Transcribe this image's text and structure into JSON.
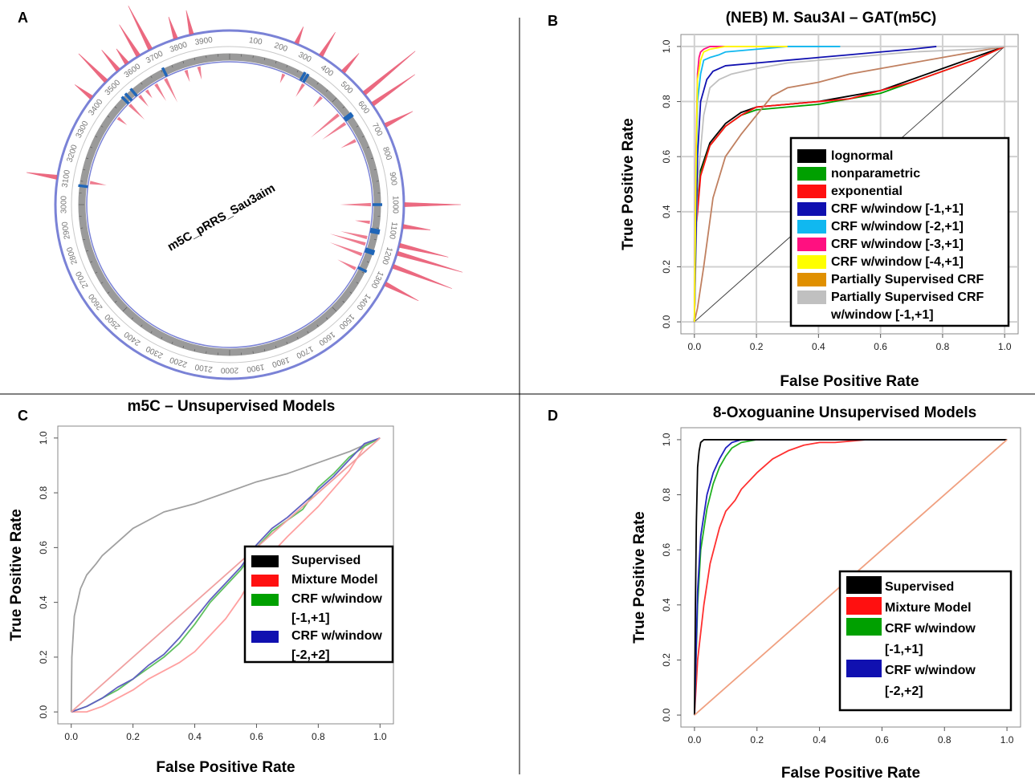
{
  "panel_labels": [
    "A",
    "B",
    "C",
    "D"
  ],
  "panel_a": {
    "plasmid_name": "m5C_pRRS_Sau3aim",
    "ring_labels": [
      "100",
      "200",
      "300",
      "400",
      "500",
      "600",
      "700",
      "800",
      "900",
      "1000",
      "1100",
      "1200",
      "1300",
      "1400",
      "1500",
      "1600",
      "1700",
      "1800",
      "1900",
      "2000",
      "2100",
      "2200",
      "2300",
      "2400",
      "2500",
      "2600",
      "2700",
      "2800",
      "2900",
      "3000",
      "3100",
      "3200",
      "3300",
      "3400",
      "3500",
      "3600",
      "3700",
      "3800",
      "3900"
    ],
    "sequence_length": 4000,
    "marker_positions": [
      330,
      345,
      590,
      600,
      1000,
      1110,
      1120,
      1200,
      1210,
      1290,
      3080,
      3500,
      3520,
      3550,
      3710
    ],
    "peaks": [
      {
        "pos": 3560,
        "h": 32
      },
      {
        "pos": 3600,
        "h": 22
      },
      {
        "pos": 3650,
        "h": 45
      },
      {
        "pos": 3700,
        "h": 60
      },
      {
        "pos": 3800,
        "h": 28
      },
      {
        "pos": 3860,
        "h": 30
      },
      {
        "pos": 250,
        "h": 22
      },
      {
        "pos": 350,
        "h": 34
      },
      {
        "pos": 450,
        "h": 30
      },
      {
        "pos": 560,
        "h": 82
      },
      {
        "pos": 610,
        "h": 64
      },
      {
        "pos": 700,
        "h": 38
      },
      {
        "pos": 1000,
        "h": 70
      },
      {
        "pos": 1080,
        "h": 34
      },
      {
        "pos": 1150,
        "h": 62
      },
      {
        "pos": 1180,
        "h": 84
      },
      {
        "pos": 1230,
        "h": 78
      },
      {
        "pos": 1300,
        "h": 46
      },
      {
        "pos": 3100,
        "h": 38
      },
      {
        "pos": 3500,
        "h": 48
      },
      {
        "pos": 3420,
        "h": 26
      }
    ],
    "colors": {
      "peak": "#e8506a",
      "marker": "#2066b8",
      "outer_ring": "#7a82d6",
      "ring": "#9a9a9a"
    }
  },
  "chart_data": [
    {
      "type": "line",
      "panel": "B",
      "title": "(NEB) M. Sau3AI – GAT(m5C)",
      "xlabel": "False Positive Rate",
      "ylabel": "True Positive Rate",
      "xlim": [
        0,
        1
      ],
      "ylim": [
        0,
        1
      ],
      "x_ticks": [
        "0.0",
        "0.2",
        "0.4",
        "0.6",
        "0.8",
        "1.0"
      ],
      "y_ticks": [
        "0.0",
        "0.2",
        "0.4",
        "0.6",
        "0.8",
        "1.0"
      ],
      "grid": true,
      "legend_position": "bottom-right",
      "legend": [
        {
          "label": "lognormal",
          "color": "#000000"
        },
        {
          "label": "nonparametric",
          "color": "#00a000"
        },
        {
          "label": "exponential",
          "color": "#ff1010"
        },
        {
          "label": "CRF w/window [-1,+1]",
          "color": "#1010b0"
        },
        {
          "label": "CRF w/window [-2,+1]",
          "color": "#10b8f0"
        },
        {
          "label": "CRF w/window [-3,+1]",
          "color": "#ff1080"
        },
        {
          "label": "CRF w/window [-4,+1]",
          "color": "#ffff00"
        },
        {
          "label": "Partially Supervised CRF",
          "color": "#e09000"
        },
        {
          "label": "Partially Supervised CRF",
          "label2": "w/window [-1,+1]",
          "color": "#c0c0c0"
        }
      ],
      "series": [
        {
          "color": "#000000",
          "x": [
            0,
            0.005,
            0.02,
            0.05,
            0.1,
            0.15,
            0.2,
            0.3,
            0.4,
            0.5,
            0.6,
            0.7,
            0.8,
            0.9,
            1.0
          ],
          "y": [
            0,
            0.35,
            0.55,
            0.65,
            0.72,
            0.76,
            0.78,
            0.79,
            0.8,
            0.82,
            0.84,
            0.88,
            0.92,
            0.96,
            1.0
          ]
        },
        {
          "color": "#00a000",
          "x": [
            0,
            0.005,
            0.02,
            0.05,
            0.1,
            0.15,
            0.2,
            0.3,
            0.4,
            0.5,
            0.6,
            0.7,
            0.8,
            0.9,
            1.0
          ],
          "y": [
            0,
            0.34,
            0.54,
            0.64,
            0.71,
            0.75,
            0.77,
            0.78,
            0.79,
            0.81,
            0.83,
            0.87,
            0.91,
            0.95,
            1.0
          ]
        },
        {
          "color": "#ff1010",
          "x": [
            0,
            0.005,
            0.02,
            0.05,
            0.1,
            0.15,
            0.2,
            0.3,
            0.4,
            0.5,
            0.6,
            0.7,
            0.8,
            0.9,
            1.0
          ],
          "y": [
            0,
            0.33,
            0.53,
            0.64,
            0.71,
            0.75,
            0.78,
            0.79,
            0.8,
            0.81,
            0.84,
            0.87,
            0.91,
            0.95,
            1.0
          ]
        },
        {
          "color": "#c08060",
          "x": [
            0,
            0.01,
            0.03,
            0.06,
            0.1,
            0.15,
            0.2,
            0.25,
            0.3,
            0.4,
            0.5,
            0.6,
            0.7,
            0.8,
            0.9,
            1.0
          ],
          "y": [
            0,
            0.05,
            0.2,
            0.45,
            0.6,
            0.68,
            0.75,
            0.82,
            0.85,
            0.87,
            0.9,
            0.92,
            0.94,
            0.96,
            0.98,
            1.0
          ]
        },
        {
          "color": "#c0c0c0",
          "x": [
            0,
            0.01,
            0.03,
            0.05,
            0.08,
            0.12,
            0.2,
            0.3,
            0.5,
            0.7,
            0.9,
            1.0
          ],
          "y": [
            0,
            0.5,
            0.75,
            0.85,
            0.88,
            0.9,
            0.92,
            0.94,
            0.96,
            0.98,
            0.99,
            1.0
          ]
        },
        {
          "color": "#1010b0",
          "x": [
            0,
            0.005,
            0.01,
            0.02,
            0.04,
            0.06,
            0.1,
            0.2,
            0.3,
            0.4,
            0.5,
            0.6,
            0.7,
            0.78
          ],
          "y": [
            0,
            0.3,
            0.6,
            0.8,
            0.88,
            0.91,
            0.93,
            0.94,
            0.95,
            0.96,
            0.97,
            0.98,
            0.99,
            1.0
          ]
        },
        {
          "color": "#10b8f0",
          "x": [
            0,
            0.005,
            0.01,
            0.02,
            0.03,
            0.05,
            0.08,
            0.1,
            0.2,
            0.3,
            0.47
          ],
          "y": [
            0,
            0.5,
            0.8,
            0.9,
            0.95,
            0.96,
            0.97,
            0.98,
            0.99,
            1.0,
            1.0
          ]
        },
        {
          "color": "#ff1080",
          "x": [
            0,
            0.005,
            0.01,
            0.015,
            0.02,
            0.03,
            0.05,
            0.1,
            0.3
          ],
          "y": [
            0,
            0.6,
            0.9,
            0.96,
            0.98,
            0.99,
            1.0,
            1.0,
            1.0
          ]
        },
        {
          "color": "#ffff00",
          "x": [
            0,
            0.005,
            0.01,
            0.02,
            0.03,
            0.05,
            0.1,
            0.3
          ],
          "y": [
            0,
            0.55,
            0.88,
            0.95,
            0.98,
            0.99,
            1.0,
            1.0
          ]
        }
      ]
    },
    {
      "type": "line",
      "panel": "C",
      "title": "m5C – Unsupervised Models",
      "xlabel": "False Positive Rate",
      "ylabel": "True Positive Rate",
      "xlim": [
        0,
        1
      ],
      "ylim": [
        0,
        1
      ],
      "x_ticks": [
        "0.0",
        "0.2",
        "0.4",
        "0.6",
        "0.8",
        "1.0"
      ],
      "y_ticks": [
        "0.0",
        "0.2",
        "0.4",
        "0.6",
        "0.8",
        "1.0"
      ],
      "grid": false,
      "legend_position": "right",
      "legend": [
        {
          "label": "Supervised",
          "color": "#000000"
        },
        {
          "label": "Mixture Model",
          "color": "#ff1010"
        },
        {
          "label": "CRF w/window",
          "label2": "[-1,+1]",
          "color": "#00a000"
        },
        {
          "label": "CRF w/window",
          "label2": "[-2,+2]",
          "color": "#1010b0"
        }
      ],
      "series": [
        {
          "color": "#a0a0a0",
          "x": [
            0,
            0.002,
            0.01,
            0.03,
            0.05,
            0.08,
            0.1,
            0.15,
            0.2,
            0.25,
            0.3,
            0.4,
            0.5,
            0.6,
            0.7,
            0.8,
            0.9,
            1.0
          ],
          "y": [
            0,
            0.2,
            0.35,
            0.45,
            0.5,
            0.54,
            0.57,
            0.62,
            0.67,
            0.7,
            0.73,
            0.76,
            0.8,
            0.84,
            0.87,
            0.91,
            0.95,
            1.0
          ]
        },
        {
          "color": "#ffa0a0",
          "x": [
            0,
            0.05,
            0.1,
            0.15,
            0.2,
            0.25,
            0.3,
            0.35,
            0.4,
            0.45,
            0.5,
            0.55,
            0.6,
            0.65,
            0.7,
            0.8,
            0.9,
            0.95,
            1.0
          ],
          "y": [
            0,
            0.0,
            0.02,
            0.05,
            0.08,
            0.12,
            0.15,
            0.18,
            0.22,
            0.28,
            0.34,
            0.42,
            0.52,
            0.58,
            0.64,
            0.75,
            0.88,
            0.97,
            1.0
          ]
        },
        {
          "color": "#60c060",
          "x": [
            0,
            0.05,
            0.1,
            0.15,
            0.2,
            0.25,
            0.3,
            0.35,
            0.4,
            0.45,
            0.5,
            0.55,
            0.6,
            0.65,
            0.7,
            0.75,
            0.8,
            0.85,
            0.9,
            0.95,
            1.0
          ],
          "y": [
            0,
            0.02,
            0.05,
            0.08,
            0.12,
            0.16,
            0.2,
            0.25,
            0.32,
            0.4,
            0.46,
            0.52,
            0.6,
            0.66,
            0.7,
            0.74,
            0.82,
            0.87,
            0.93,
            0.97,
            1.0
          ]
        },
        {
          "color": "#6060c0",
          "x": [
            0,
            0.05,
            0.1,
            0.15,
            0.2,
            0.25,
            0.3,
            0.35,
            0.4,
            0.45,
            0.5,
            0.55,
            0.6,
            0.65,
            0.7,
            0.75,
            0.8,
            0.85,
            0.9,
            0.95,
            1.0
          ],
          "y": [
            0,
            0.02,
            0.05,
            0.09,
            0.12,
            0.17,
            0.21,
            0.27,
            0.34,
            0.41,
            0.47,
            0.53,
            0.61,
            0.67,
            0.71,
            0.76,
            0.81,
            0.86,
            0.92,
            0.98,
            1.0
          ]
        },
        {
          "color": "#f0a0a0",
          "x": [
            0,
            1
          ],
          "y": [
            0,
            1
          ]
        }
      ]
    },
    {
      "type": "line",
      "panel": "D",
      "title": "8-Oxoguanine Unsupervised Models",
      "xlabel": "False Positive Rate",
      "ylabel": "True Positive Rate",
      "xlim": [
        0,
        1
      ],
      "ylim": [
        0,
        1
      ],
      "x_ticks": [
        "0.0",
        "0.2",
        "0.4",
        "0.6",
        "0.8",
        "1.0"
      ],
      "y_ticks": [
        "0.0",
        "0.2",
        "0.4",
        "0.6",
        "0.8",
        "1.0"
      ],
      "grid": false,
      "legend_position": "bottom-right",
      "legend": [
        {
          "label": "Supervised",
          "color": "#000000"
        },
        {
          "label": "Mixture Model",
          "color": "#ff1010"
        },
        {
          "label": "CRF w/window",
          "label2": "[-1,+1]",
          "color": "#00a000"
        },
        {
          "label": "CRF w/window",
          "label2": "[-2,+2]",
          "color": "#1010b0"
        }
      ],
      "series": [
        {
          "color": "#ff3030",
          "x": [
            0,
            0.01,
            0.03,
            0.05,
            0.08,
            0.1,
            0.13,
            0.15,
            0.2,
            0.25,
            0.3,
            0.35,
            0.4,
            0.45,
            0.55,
            0.7,
            1.0
          ],
          "y": [
            0,
            0.2,
            0.4,
            0.55,
            0.68,
            0.74,
            0.78,
            0.82,
            0.88,
            0.93,
            0.96,
            0.98,
            0.99,
            0.99,
            1.0,
            1.0,
            1.0
          ]
        },
        {
          "color": "#20b020",
          "x": [
            0,
            0.01,
            0.02,
            0.04,
            0.06,
            0.08,
            0.1,
            0.12,
            0.15,
            0.2,
            0.4,
            1.0
          ],
          "y": [
            0,
            0.4,
            0.6,
            0.75,
            0.84,
            0.9,
            0.94,
            0.97,
            0.99,
            1.0,
            1.0,
            1.0
          ]
        },
        {
          "color": "#2020c0",
          "x": [
            0,
            0.01,
            0.02,
            0.04,
            0.06,
            0.08,
            0.1,
            0.12,
            0.15,
            0.2,
            0.4,
            1.0
          ],
          "y": [
            0,
            0.45,
            0.65,
            0.8,
            0.88,
            0.93,
            0.97,
            0.99,
            1.0,
            1.0,
            1.0,
            1.0
          ]
        },
        {
          "color": "#000000",
          "x": [
            0,
            0.003,
            0.006,
            0.01,
            0.015,
            0.02,
            0.03,
            0.05,
            1.0
          ],
          "y": [
            0,
            0.4,
            0.7,
            0.9,
            0.96,
            0.99,
            1.0,
            1.0,
            1.0
          ]
        },
        {
          "color": "#f0a080",
          "x": [
            0,
            1
          ],
          "y": [
            0,
            1
          ]
        }
      ]
    }
  ]
}
